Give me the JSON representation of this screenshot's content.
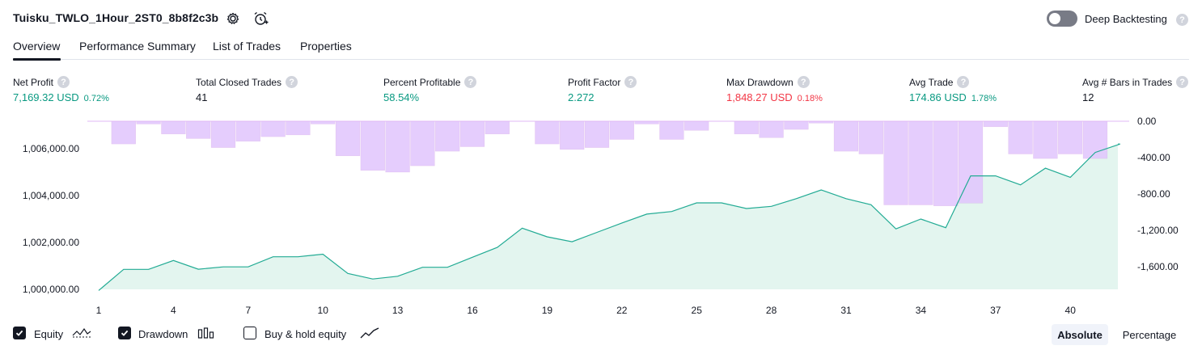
{
  "header": {
    "strategy_name": "Tuisku_TWLO_1Hour_2ST0_8b8f2c3b",
    "settings_icon": "gear-icon",
    "alert_icon": "alarm-clock-plus-icon",
    "deep_backtesting_label": "Deep Backtesting",
    "deep_backtesting_enabled": false,
    "help_glyph": "?"
  },
  "tabs": [
    {
      "label": "Overview",
      "active": true
    },
    {
      "label": "Performance Summary",
      "active": false
    },
    {
      "label": "List of Trades",
      "active": false
    },
    {
      "label": "Properties",
      "active": false
    }
  ],
  "metrics": [
    {
      "label": "Net Profit",
      "value": "7,169.32 USD",
      "pct": "0.72%",
      "color": "#089981"
    },
    {
      "label": "Total Closed Trades",
      "value": "41",
      "pct": "",
      "color": "#131722"
    },
    {
      "label": "Percent Profitable",
      "value": "58.54%",
      "pct": "",
      "color": "#089981"
    },
    {
      "label": "Profit Factor",
      "value": "2.272",
      "pct": "",
      "color": "#089981"
    },
    {
      "label": "Max Drawdown",
      "value": "1,848.27 USD",
      "pct": "0.18%",
      "color": "#f23645"
    },
    {
      "label": "Avg Trade",
      "value": "174.86 USD",
      "pct": "1.78%",
      "color": "#089981"
    },
    {
      "label": "Avg # Bars in Trades",
      "value": "12",
      "pct": "",
      "color": "#131722"
    }
  ],
  "chart_data": {
    "type": "area",
    "x": [
      1,
      2,
      3,
      4,
      5,
      6,
      7,
      8,
      9,
      10,
      11,
      12,
      13,
      14,
      15,
      16,
      17,
      18,
      19,
      20,
      21,
      22,
      23,
      24,
      25,
      26,
      27,
      28,
      29,
      30,
      31,
      32,
      33,
      34,
      35,
      36,
      37,
      38,
      39,
      40,
      41,
      42,
      43
    ],
    "x_tick_labels": [
      "1",
      "4",
      "7",
      "10",
      "13",
      "16",
      "19",
      "22",
      "25",
      "28",
      "31",
      "34",
      "37",
      "40"
    ],
    "series": [
      {
        "name": "Equity",
        "axis": "left",
        "color": "#22ab94",
        "fill": "#e3f5ef",
        "values": [
          999950,
          1000850,
          1000850,
          1001230,
          1000860,
          1000960,
          1000960,
          1001390,
          1001390,
          1001500,
          1000680,
          1000440,
          1000560,
          1000940,
          1000940,
          1001370,
          1001790,
          1002610,
          1002240,
          1002030,
          1002430,
          1002830,
          1003210,
          1003320,
          1003690,
          1003690,
          1003450,
          1003540,
          1003870,
          1004240,
          1003870,
          1003610,
          1002580,
          1003000,
          1002630,
          1004840,
          1004840,
          1004460,
          1005170,
          1004780,
          1005840,
          1006200,
          1006200
        ]
      },
      {
        "name": "Drawdown",
        "axis": "right",
        "color": "#ce93d8",
        "fill": "#e1c4fd",
        "values": [
          0,
          -250,
          -30,
          -140,
          -190,
          -290,
          -220,
          -170,
          -150,
          -30,
          -380,
          -540,
          -560,
          -490,
          -330,
          -280,
          -140,
          0,
          -250,
          -310,
          -290,
          -200,
          -30,
          -200,
          -100,
          0,
          -140,
          -180,
          -90,
          -20,
          -330,
          -360,
          -920,
          -920,
          -930,
          -900,
          -60,
          -360,
          -410,
          -360,
          -410,
          0,
          0
        ]
      }
    ],
    "ylim_left": [
      1000000,
      1007000
    ],
    "yticks_left": [
      "1,000,000.00",
      "1,002,000.00",
      "1,004,000.00",
      "1,006,000.00"
    ],
    "ylim_right": [
      -1848.27,
      0
    ],
    "yticks_right": [
      "0.00",
      "-400.00",
      "-800.00",
      "-1,200.00",
      "-1,600.00"
    ],
    "grid": false,
    "legend_position": "bottom-left"
  },
  "legend": {
    "items": [
      {
        "label": "Equity",
        "checked": true,
        "icon": "equity-line-icon"
      },
      {
        "label": "Drawdown",
        "checked": true,
        "icon": "drawdown-bars-icon"
      },
      {
        "label": "Buy & hold equity",
        "checked": false,
        "icon": "buy-hold-line-icon"
      }
    ],
    "absolute_label": "Absolute",
    "percentage_label": "Percentage",
    "mode": "Absolute"
  }
}
